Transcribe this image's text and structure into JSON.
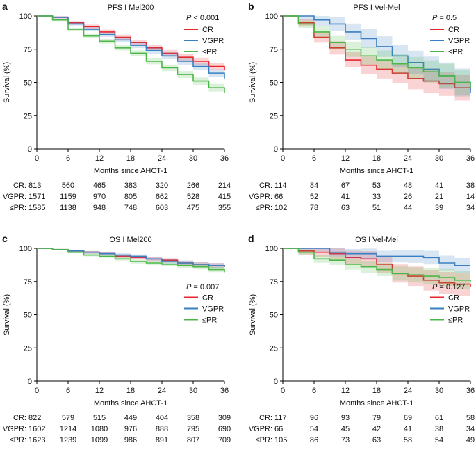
{
  "colors": {
    "CR": "#e8262c",
    "VGPR": "#3a7fc1",
    "PR": "#4cb748"
  },
  "chart_data": [
    {
      "panel": "a",
      "type": "line",
      "title": "PFS I Mel200",
      "p_value": "< 0.001",
      "xlabel": "Months since AHCT-1",
      "ylabel": "Survival (%)",
      "xlim": [
        0,
        36
      ],
      "ylim": [
        0,
        100
      ],
      "xticks": [
        0,
        6,
        12,
        18,
        24,
        30,
        36
      ],
      "yticks": [
        0,
        25,
        50,
        75,
        100
      ],
      "legend": "top-right",
      "x": [
        0,
        3,
        6,
        9,
        12,
        15,
        18,
        21,
        24,
        27,
        30,
        33,
        36
      ],
      "series": [
        {
          "name": "CR",
          "values": [
            100,
            99,
            95,
            92,
            88,
            84,
            80,
            76,
            72,
            69,
            66,
            62,
            59
          ],
          "ci_halfwidth_at_36": 3
        },
        {
          "name": "VGPR",
          "values": [
            100,
            99,
            94,
            90,
            86,
            82,
            78,
            74,
            70,
            66,
            62,
            57,
            53
          ],
          "ci_halfwidth_at_36": 3
        },
        {
          "name": "≤PR",
          "values": [
            100,
            97,
            90,
            85,
            81,
            76,
            72,
            66,
            61,
            56,
            51,
            46,
            42
          ],
          "ci_halfwidth_at_36": 3
        }
      ],
      "risk_table": [
        {
          "label": "CR:",
          "values": [
            "813",
            "560",
            "465",
            "383",
            "320",
            "266",
            "214"
          ]
        },
        {
          "label": "VGPR:",
          "values": [
            "1571",
            "1159",
            "970",
            "805",
            "662",
            "528",
            "415"
          ]
        },
        {
          "label": "≤PR:",
          "values": [
            "1585",
            "1138",
            "948",
            "748",
            "603",
            "475",
            "355"
          ]
        }
      ]
    },
    {
      "panel": "b",
      "type": "line",
      "title": "PFS I Vel-Mel",
      "p_value": "= 0.5",
      "xlabel": "Months since AHCT-1",
      "ylabel": "Survival (%)",
      "xlim": [
        0,
        36
      ],
      "ylim": [
        0,
        100
      ],
      "xticks": [
        0,
        6,
        12,
        18,
        24,
        30,
        36
      ],
      "yticks": [
        0,
        25,
        50,
        75,
        100
      ],
      "legend": "top-right",
      "x": [
        0,
        3,
        6,
        9,
        12,
        15,
        18,
        21,
        24,
        27,
        30,
        33,
        36
      ],
      "series": [
        {
          "name": "CR",
          "values": [
            100,
            95,
            84,
            76,
            67,
            63,
            60,
            57,
            53,
            51,
            49,
            46,
            44
          ],
          "ci_halfwidth_at_36": 10
        },
        {
          "name": "VGPR",
          "values": [
            100,
            100,
            97,
            94,
            88,
            83,
            77,
            70,
            65,
            60,
            55,
            50,
            42
          ],
          "ci_halfwidth_at_36": 11
        },
        {
          "name": "≤PR",
          "values": [
            100,
            94,
            88,
            80,
            75,
            70,
            67,
            64,
            61,
            58,
            55,
            50,
            46
          ],
          "ci_halfwidth_at_36": 10
        }
      ],
      "risk_table": [
        {
          "label": "CR:",
          "values": [
            "114",
            "84",
            "67",
            "53",
            "48",
            "41",
            "38"
          ]
        },
        {
          "label": "VGPR:",
          "values": [
            "66",
            "52",
            "41",
            "33",
            "26",
            "21",
            "14"
          ]
        },
        {
          "label": "≤PR:",
          "values": [
            "102",
            "78",
            "63",
            "51",
            "44",
            "39",
            "34"
          ]
        }
      ]
    },
    {
      "panel": "c",
      "type": "line",
      "title": "OS I Mel200",
      "p_value": "= 0.007",
      "xlabel": "Months since AHCT-1",
      "ylabel": "Survival (%)",
      "xlim": [
        0,
        36
      ],
      "ylim": [
        0,
        100
      ],
      "xticks": [
        0,
        6,
        12,
        18,
        24,
        30,
        36
      ],
      "yticks": [
        0,
        25,
        50,
        75,
        100
      ],
      "legend": "right",
      "x": [
        0,
        3,
        6,
        9,
        12,
        15,
        18,
        21,
        24,
        27,
        30,
        33,
        36
      ],
      "series": [
        {
          "name": "CR",
          "values": [
            100,
            99,
            98,
            97,
            96,
            94,
            93,
            92,
            91,
            89,
            88,
            87,
            86
          ],
          "ci_halfwidth_at_36": 2
        },
        {
          "name": "VGPR",
          "values": [
            100,
            99,
            98,
            97,
            96,
            95,
            94,
            92,
            90,
            89,
            88,
            87,
            86
          ],
          "ci_halfwidth_at_36": 2
        },
        {
          "name": "≤PR",
          "values": [
            100,
            99,
            97,
            95,
            94,
            92,
            90,
            89,
            88,
            87,
            86,
            84,
            82
          ],
          "ci_halfwidth_at_36": 2
        }
      ],
      "risk_table": [
        {
          "label": "CR:",
          "values": [
            "822",
            "579",
            "515",
            "449",
            "404",
            "358",
            "309"
          ]
        },
        {
          "label": "VGPR:",
          "values": [
            "1602",
            "1214",
            "1080",
            "976",
            "888",
            "795",
            "690"
          ]
        },
        {
          "label": "≤PR:",
          "values": [
            "1623",
            "1239",
            "1099",
            "986",
            "891",
            "807",
            "709"
          ]
        }
      ]
    },
    {
      "panel": "d",
      "type": "line",
      "title": "OS I Vel-Mel",
      "p_value": "= 0.127",
      "xlabel": "Months since AHCT-1",
      "ylabel": "Survival (%)",
      "xlim": [
        0,
        36
      ],
      "ylim": [
        0,
        100
      ],
      "xticks": [
        0,
        6,
        12,
        18,
        24,
        30,
        36
      ],
      "yticks": [
        0,
        25,
        50,
        75,
        100
      ],
      "legend": "right",
      "x": [
        0,
        3,
        6,
        9,
        12,
        15,
        18,
        21,
        24,
        27,
        30,
        33,
        36
      ],
      "series": [
        {
          "name": "CR",
          "values": [
            100,
            98,
            97,
            96,
            93,
            92,
            88,
            81,
            79,
            76,
            74,
            73,
            71
          ],
          "ci_halfwidth_at_36": 9
        },
        {
          "name": "VGPR",
          "values": [
            100,
            100,
            100,
            97,
            96,
            96,
            94,
            94,
            94,
            93,
            89,
            87,
            87
          ],
          "ci_halfwidth_at_36": 6
        },
        {
          "name": "≤PR",
          "values": [
            100,
            97,
            92,
            91,
            88,
            86,
            84,
            81,
            80,
            79,
            78,
            76,
            75
          ],
          "ci_halfwidth_at_36": 7
        }
      ],
      "risk_table": [
        {
          "label": "CR:",
          "values": [
            "117",
            "96",
            "93",
            "79",
            "69",
            "61",
            "58"
          ]
        },
        {
          "label": "VGPR:",
          "values": [
            "66",
            "54",
            "45",
            "42",
            "41",
            "38",
            "34"
          ]
        },
        {
          "label": "≤PR:",
          "values": [
            "105",
            "86",
            "73",
            "63",
            "58",
            "54",
            "49"
          ]
        }
      ]
    }
  ]
}
